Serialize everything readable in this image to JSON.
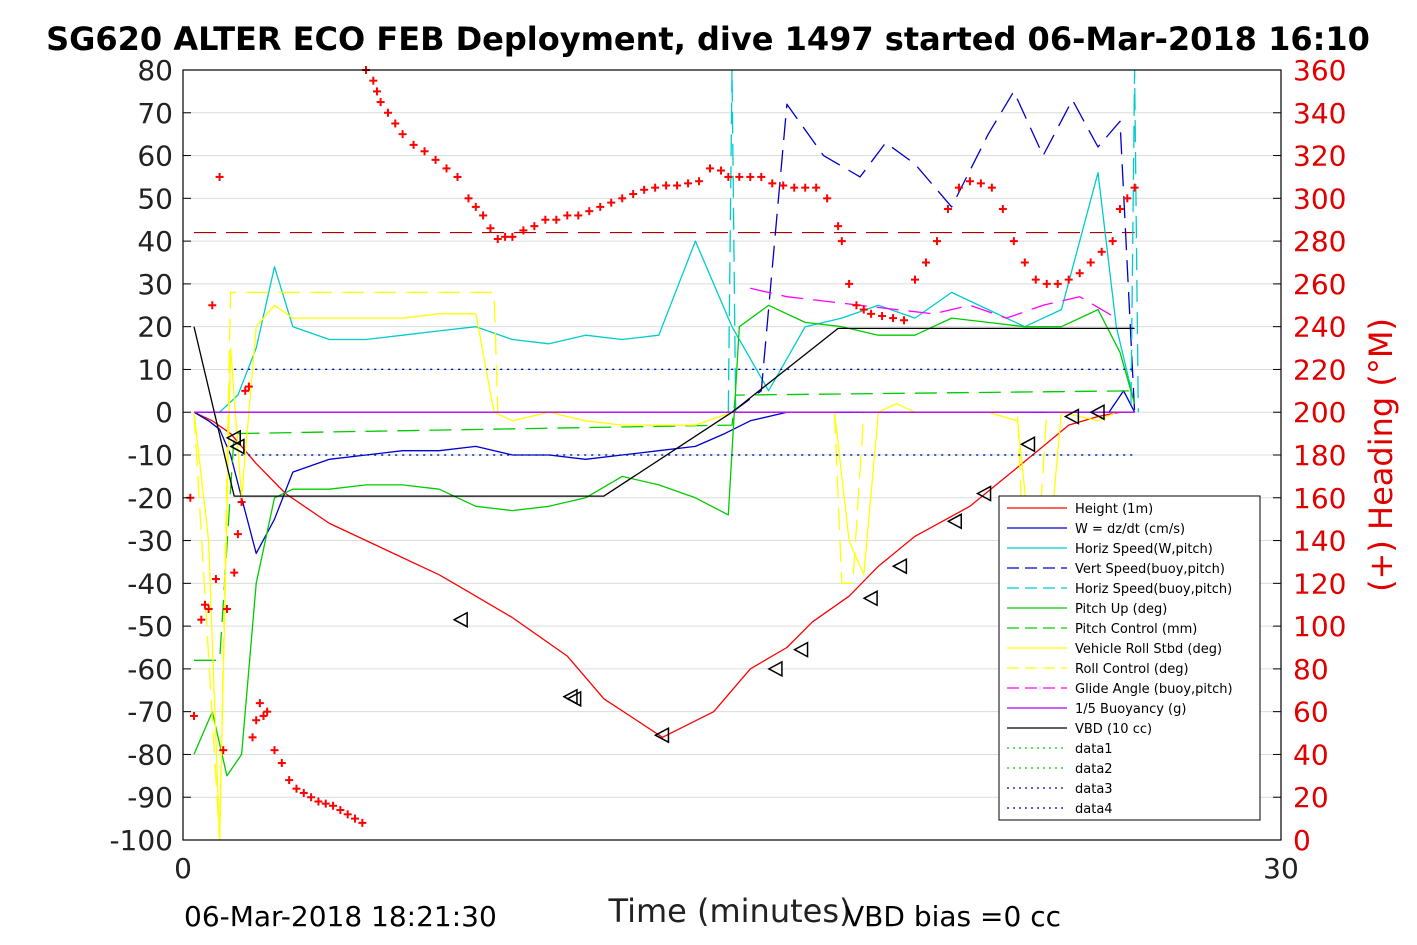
{
  "chart_data": {
    "type": "line",
    "title": "SG620 ALTER ECO FEB Deployment, dive 1497 started 06-Mar-2018 16:10",
    "xlabel": "Time (minutes)",
    "ylabel_right": "(+) Heading (°M)",
    "xlim": [
      0,
      30
    ],
    "ylim_left": [
      -100,
      80
    ],
    "ylim_right": [
      0,
      360
    ],
    "x_ticks": [
      0,
      30
    ],
    "y_ticks_left": [
      80,
      70,
      60,
      50,
      40,
      30,
      20,
      10,
      0,
      -10,
      -20,
      -30,
      -40,
      -50,
      -60,
      -70,
      -80,
      -90,
      -100
    ],
    "y_ticks_right": [
      360,
      340,
      320,
      300,
      280,
      260,
      240,
      220,
      200,
      180,
      160,
      140,
      120,
      100,
      80,
      60,
      40,
      20,
      0
    ],
    "grid": "horizontal",
    "legend_position": "lower-right",
    "footer_left": "06-Mar-2018 18:21:30",
    "footer_right": "VBD bias =0 cc",
    "series": [
      {
        "name": "Height (1m)",
        "color": "#ff0000",
        "style": "solid",
        "x": [
          0.3,
          0.8,
          1.3,
          1.6,
          2.0,
          2.8,
          4.0,
          5.5,
          7.0,
          7.6,
          9.0,
          10.5,
          11.5,
          13.1,
          14.5,
          15.5,
          16.5,
          17.2,
          18.2,
          19.0,
          20.0,
          21.5,
          22.5,
          23.5,
          24.2,
          25.0,
          25.6,
          26.0
        ],
        "y": [
          0,
          -2,
          -5,
          -8,
          -12,
          -19,
          -26,
          -32,
          -38,
          -41,
          -48,
          -57,
          -67,
          -76,
          -70,
          -60,
          -55,
          -49,
          -43,
          -36,
          -29,
          -22,
          -15,
          -8,
          -3,
          -1,
          0,
          0
        ]
      },
      {
        "name": "W = dz/dt (cm/s)",
        "color": "#0000cc",
        "style": "solid",
        "x": [
          0.3,
          0.7,
          1.0,
          1.3,
          1.6,
          2.0,
          2.5,
          3.0,
          4.0,
          5.0,
          6.0,
          7.0,
          8.0,
          9.0,
          10.0,
          11.0,
          12.0,
          13.0,
          14.0,
          14.8,
          15.5,
          16.5,
          17.5,
          18.0,
          18.5,
          19.5,
          20.5,
          21.5,
          22.5,
          23.5,
          24.5,
          25.3,
          25.7,
          26.0
        ],
        "y": [
          0,
          -2,
          -4,
          -10,
          -20,
          -33,
          -25,
          -14,
          -11,
          -10,
          -9,
          -9,
          -8,
          -10,
          -10,
          -11,
          -10,
          -9,
          -8,
          -5,
          -2,
          0,
          0,
          0,
          0,
          0,
          0,
          0,
          0,
          0,
          0,
          0,
          5,
          0
        ]
      },
      {
        "name": "Horiz Speed(W,pitch)",
        "color": "#00cccc",
        "style": "solid",
        "x": [
          0.3,
          1.0,
          1.5,
          2.0,
          2.5,
          3.0,
          4.0,
          5.0,
          6.0,
          7.0,
          8.0,
          9.0,
          10.0,
          11.0,
          12.0,
          13.0,
          14.0,
          15.0,
          16.0,
          17.0,
          18.0,
          19.0,
          20.0,
          21.0,
          22.0,
          23.0,
          24.0,
          25.0,
          25.5,
          26.0
        ],
        "y": [
          0,
          0,
          4,
          15,
          34,
          20,
          17,
          17,
          18,
          19,
          20,
          17,
          16,
          18,
          17,
          18,
          40,
          20,
          5,
          20,
          22,
          25,
          22,
          28,
          24,
          20,
          24,
          56,
          20,
          2
        ]
      },
      {
        "name": "Vert Speed(buoy,pitch)",
        "color": "#0000cc",
        "style": "dashed",
        "x": [
          15.0,
          15.8,
          16.5,
          17.5,
          18.5,
          19.2,
          20.0,
          21.0,
          22.0,
          22.7,
          23.5,
          24.3,
          25.0,
          25.6,
          26.0
        ],
        "y": [
          0,
          5,
          72,
          60,
          55,
          63,
          58,
          48,
          65,
          75,
          60,
          73,
          62,
          68,
          0
        ]
      },
      {
        "name": "Horiz Speed(buoy,pitch)",
        "color": "#00cccc",
        "style": "dashed",
        "x": [
          14.9,
          15.0,
          15.1,
          25.9,
          26.0,
          26.1
        ],
        "y": [
          0,
          80,
          0,
          0,
          80,
          0
        ]
      },
      {
        "name": "Pitch Up (deg)",
        "color": "#00cc00",
        "style": "solid",
        "x": [
          0.3,
          0.8,
          1.2,
          1.6,
          2.0,
          2.5,
          3.0,
          4.0,
          5.0,
          6.0,
          7.0,
          8.0,
          9.0,
          10.0,
          11.0,
          12.0,
          13.0,
          14.0,
          14.9,
          15.2,
          16.0,
          17.0,
          18.0,
          19.0,
          20.0,
          21.0,
          22.0,
          23.0,
          24.0,
          25.0,
          25.6,
          26.0
        ],
        "y": [
          -80,
          -70,
          -85,
          -80,
          -40,
          -20,
          -18,
          -18,
          -17,
          -17,
          -18,
          -22,
          -23,
          -22,
          -20,
          -15,
          -17,
          -20,
          -24,
          20,
          25,
          21,
          20,
          18,
          18,
          22,
          21,
          20,
          20,
          24,
          14,
          2
        ]
      },
      {
        "name": "Pitch Control (mm)",
        "color": "#00cc00",
        "style": "dashed",
        "x": [
          0.3,
          1.0,
          1.4,
          15.0,
          15.1,
          26.0
        ],
        "y": [
          -58,
          -58,
          -5,
          -3,
          4,
          5
        ]
      },
      {
        "name": "Vehicle Roll Stbd (deg)",
        "color": "#ffff00",
        "style": "solid",
        "x": [
          0.3,
          0.7,
          1.0,
          1.3,
          1.6,
          2.0,
          2.5,
          3.0,
          4.0,
          5.0,
          6.0,
          7.0,
          8.0,
          8.5,
          9.0,
          10.0,
          11.0,
          12.0,
          13.0,
          14.0,
          15.0,
          16.0,
          17.0,
          17.8,
          18.2,
          18.6,
          19.0,
          19.5,
          20.0,
          21.0,
          22.0,
          22.8,
          23.2,
          23.6,
          24.0,
          25.0,
          25.5,
          26.0
        ],
        "y": [
          0,
          -30,
          -100,
          15,
          -20,
          20,
          25,
          22,
          22,
          22,
          22,
          23,
          23,
          0,
          -2,
          0,
          -2,
          -3,
          -3,
          -3,
          0,
          0,
          0,
          0,
          -30,
          -38,
          0,
          2,
          0,
          0,
          0,
          -2,
          -35,
          -38,
          0,
          -2,
          0,
          0
        ]
      },
      {
        "name": "Roll Control (deg)",
        "color": "#ffff00",
        "style": "dashed",
        "x": [
          0.3,
          1.0,
          1.3,
          1.6,
          8.5,
          8.6,
          15.0,
          17.8,
          18.0,
          18.3,
          18.6,
          19.0,
          22.5,
          22.8,
          23.0,
          23.3,
          23.6,
          26.0
        ],
        "y": [
          0,
          -100,
          28,
          28,
          28,
          0,
          0,
          0,
          -40,
          -40,
          0,
          0,
          0,
          0,
          -40,
          -40,
          0,
          0
        ]
      },
      {
        "name": "Glide Angle (buoy,pitch)",
        "color": "#ff00ff",
        "style": "dashed",
        "x": [
          15.5,
          16.5,
          17.5,
          18.5,
          19.5,
          20.5,
          21.5,
          22.5,
          23.5,
          24.5,
          25.5
        ],
        "y": [
          29,
          27,
          26,
          25,
          24,
          23,
          25,
          22,
          25,
          27,
          22
        ]
      },
      {
        "name": "1/5 Buoyancy (g)",
        "color": "#aa00ff",
        "style": "solid",
        "x": [
          0.3,
          26.0
        ],
        "y": [
          0,
          0
        ]
      },
      {
        "name": "VBD (10 cc)",
        "color": "#000000",
        "style": "solid",
        "x": [
          0.3,
          1.4,
          11.5,
          15.0,
          17.9,
          26.0
        ],
        "y": [
          20,
          -19.6,
          -19.6,
          0,
          19.6,
          19.6
        ]
      },
      {
        "name": "data1",
        "color": "#00cc00",
        "style": "dotted",
        "x": [
          1.4,
          26.0
        ],
        "y": [
          10,
          10
        ]
      },
      {
        "name": "data2",
        "color": "#00cc00",
        "style": "dotted",
        "x": [
          1.4,
          26.0
        ],
        "y": [
          -10,
          -10
        ]
      },
      {
        "name": "data3",
        "color": "#0000cc",
        "style": "dotted",
        "x": [
          1.4,
          26.0
        ],
        "y": [
          10,
          10
        ]
      },
      {
        "name": "data4",
        "color": "#0000cc",
        "style": "dotted",
        "x": [
          1.4,
          26.0
        ],
        "y": [
          -10,
          -10
        ]
      }
    ],
    "reference_line": {
      "color": "#aa0000",
      "style": "dashed",
      "y": 42,
      "x": [
        0.3,
        26.0
      ]
    },
    "heading_points": {
      "color": "#ff0000",
      "marker": "+",
      "axis": "right",
      "x": [
        0.2,
        0.3,
        0.5,
        0.6,
        0.7,
        0.8,
        0.9,
        1.0,
        1.1,
        1.2,
        1.4,
        1.5,
        1.6,
        1.7,
        1.8,
        1.9,
        2.0,
        2.1,
        2.2,
        2.3,
        2.5,
        2.7,
        2.9,
        3.1,
        3.3,
        3.5,
        3.7,
        3.9,
        4.1,
        4.3,
        4.5,
        4.7,
        4.9,
        5.0,
        5.2,
        5.3,
        5.4,
        5.6,
        5.8,
        6.0,
        6.3,
        6.6,
        6.9,
        7.2,
        7.5,
        7.8,
        8.0,
        8.2,
        8.4,
        8.6,
        8.8,
        9.0,
        9.3,
        9.6,
        9.9,
        10.2,
        10.5,
        10.8,
        11.1,
        11.4,
        11.7,
        12.0,
        12.3,
        12.6,
        12.9,
        13.2,
        13.5,
        13.8,
        14.1,
        14.4,
        14.7,
        14.9,
        15.2,
        15.5,
        15.8,
        16.1,
        16.4,
        16.7,
        17.0,
        17.3,
        17.6,
        17.9,
        18.0,
        18.2,
        18.4,
        18.6,
        18.8,
        19.1,
        19.4,
        19.7,
        20.0,
        20.3,
        20.6,
        20.9,
        21.2,
        21.5,
        21.8,
        22.1,
        22.4,
        22.7,
        23.0,
        23.3,
        23.6,
        23.9,
        24.2,
        24.5,
        24.8,
        25.1,
        25.4,
        25.6,
        25.8,
        26.0
      ],
      "y": [
        160,
        58,
        103,
        110,
        108,
        250,
        122,
        310,
        42,
        108,
        125,
        143,
        158,
        210,
        212,
        48,
        56,
        64,
        58,
        60,
        42,
        36,
        28,
        24,
        22,
        20,
        18,
        17,
        16,
        14,
        12,
        10,
        8,
        360,
        355,
        350,
        345,
        340,
        335,
        330,
        325,
        322,
        318,
        314,
        310,
        300,
        296,
        292,
        286,
        281,
        282,
        282,
        285,
        287,
        290,
        290,
        292,
        292,
        294,
        296,
        298,
        300,
        302,
        304,
        305,
        306,
        306,
        307,
        308,
        314,
        313,
        310,
        310,
        310,
        310,
        307,
        306,
        305,
        305,
        305,
        300,
        287,
        280,
        260,
        250,
        248,
        246,
        245,
        244,
        243,
        262,
        270,
        280,
        295,
        305,
        308,
        307,
        305,
        295,
        280,
        270,
        262,
        260,
        260,
        262,
        265,
        270,
        275,
        280,
        295,
        300,
        305
      ]
    },
    "triangle_markers": {
      "color": "#000000",
      "axis": "left",
      "x": [
        1.4,
        1.5,
        7.6,
        10.6,
        10.7,
        13.1,
        16.2,
        16.9,
        18.8,
        19.6,
        21.1,
        21.9,
        23.1,
        24.3,
        25.0
      ],
      "y": [
        -6,
        -8,
        -48.5,
        -66.5,
        -67,
        -75.5,
        -60,
        -55.5,
        -43.5,
        -36,
        -25.5,
        -19,
        -7.5,
        -1,
        0
      ]
    },
    "legend_entries": [
      "Height (1m)",
      "W = dz/dt (cm/s)",
      "Horiz Speed(W,pitch)",
      "Vert Speed(buoy,pitch)",
      "Horiz Speed(buoy,pitch)",
      "Pitch Up (deg)",
      "Pitch Control (mm)",
      "Vehicle Roll Stbd (deg)",
      "Roll Control (deg)",
      "Glide Angle (buoy,pitch)",
      "1/5 Buoyancy (g)",
      "VBD (10 cc)",
      "data1",
      "data2",
      "data3",
      "data4"
    ]
  }
}
